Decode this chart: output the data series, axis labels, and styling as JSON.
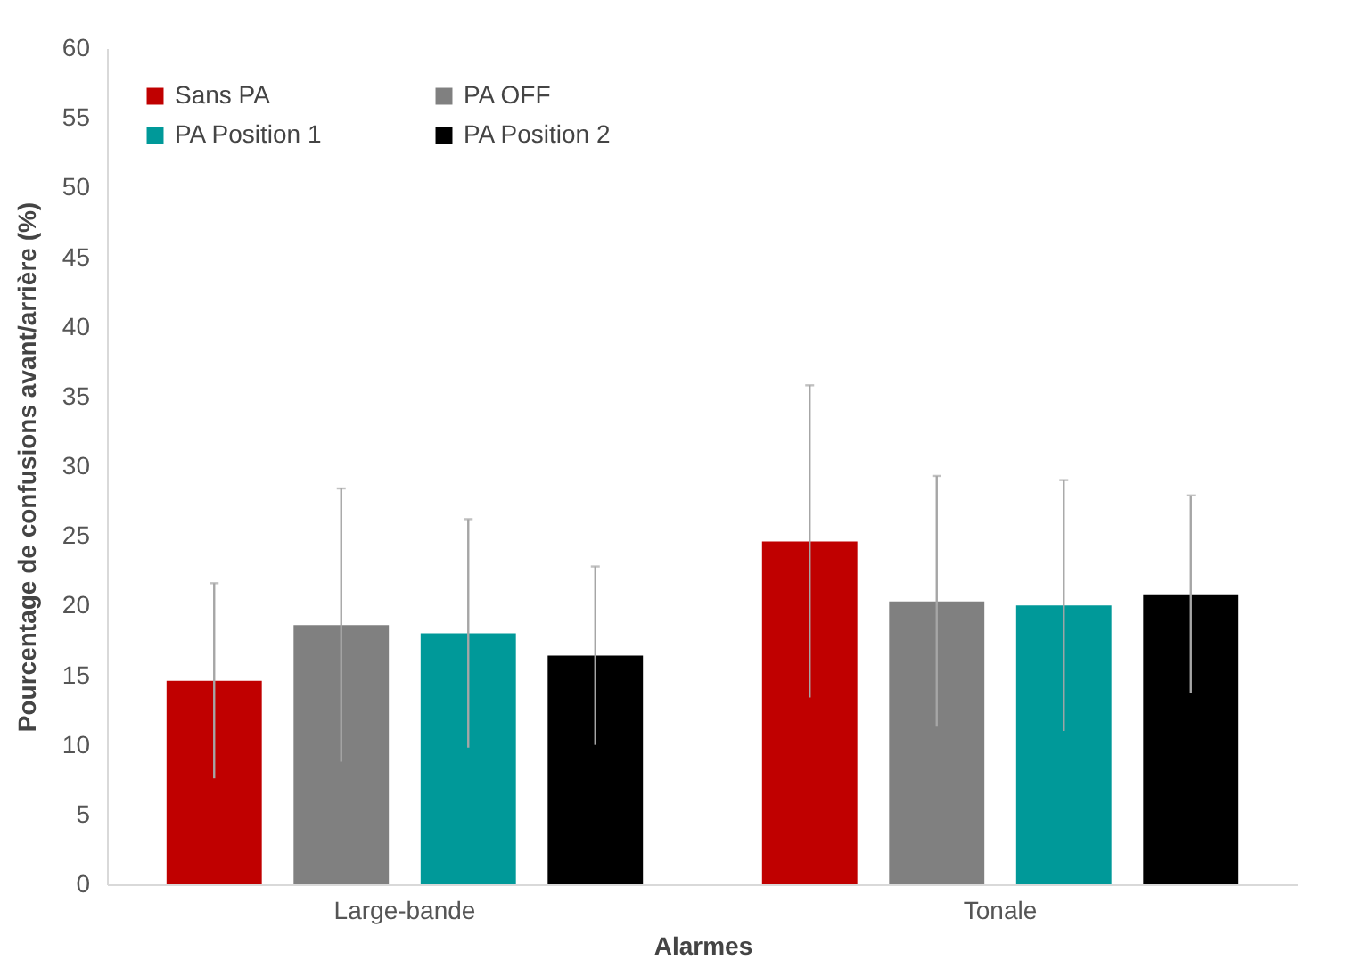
{
  "chart_data": {
    "type": "bar",
    "xlabel": "Alarmes",
    "ylabel": "Pourcentage de confusions avant/arrière (%)",
    "categories": [
      "Large-bande",
      "Tonale"
    ],
    "series": [
      {
        "name": "Sans PA",
        "color": "#c00000",
        "values": [
          14.6,
          24.6
        ],
        "errors": [
          7,
          11.2
        ]
      },
      {
        "name": "PA OFF",
        "color": "#808080",
        "values": [
          18.6,
          20.3
        ],
        "errors": [
          9.8,
          9
        ]
      },
      {
        "name": "PA Position 1",
        "color": "#009999",
        "values": [
          18,
          20
        ],
        "errors": [
          8.2,
          9
        ]
      },
      {
        "name": "PA Position 2",
        "color": "#000000",
        "values": [
          16.4,
          20.8
        ],
        "errors": [
          6.4,
          7.1
        ]
      }
    ],
    "ylim": [
      0,
      60
    ],
    "yticks": [
      0,
      5,
      10,
      15,
      20,
      25,
      30,
      35,
      40,
      45,
      50,
      55,
      60
    ],
    "grid": false,
    "legend": "top left"
  }
}
